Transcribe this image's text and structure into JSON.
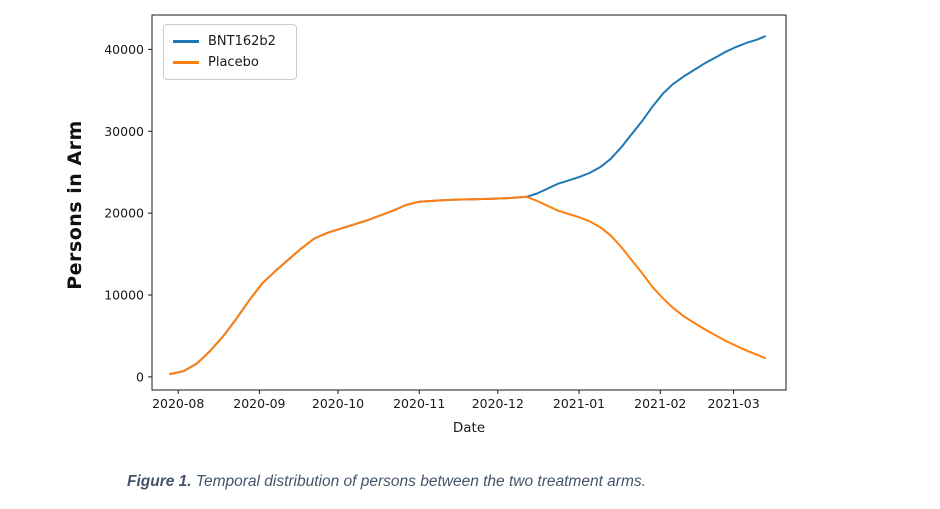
{
  "figure": {
    "caption_prefix": "Figure 1.",
    "caption_text": " Temporal distribution of persons between the two treatment arms.",
    "caption_color": "#44546A"
  },
  "chart_data": {
    "type": "line",
    "title": "",
    "xlabel": "Date",
    "ylabel": "Persons in Arm",
    "grid": false,
    "legend_position": "upper left",
    "axis_color": "#1a1a1a",
    "x_tick_labels": [
      "2020-08",
      "2020-09",
      "2020-10",
      "2020-11",
      "2020-12",
      "2021-01",
      "2021-02",
      "2021-03"
    ],
    "y_ticks": [
      0,
      10000,
      20000,
      30000,
      40000
    ],
    "xlim": [
      "2020-07-22",
      "2021-03-21"
    ],
    "ylim": [
      -1600,
      44200
    ],
    "series": [
      {
        "name": "BNT162b2",
        "color": "#1f77b4",
        "x": [
          "2020-07-29",
          "2020-08-03",
          "2020-08-08",
          "2020-08-13",
          "2020-08-18",
          "2020-08-23",
          "2020-08-28",
          "2020-09-02",
          "2020-09-07",
          "2020-09-12",
          "2020-09-17",
          "2020-09-22",
          "2020-09-27",
          "2020-10-02",
          "2020-10-07",
          "2020-10-12",
          "2020-10-17",
          "2020-10-22",
          "2020-10-27",
          "2020-11-01",
          "2020-11-08",
          "2020-11-15",
          "2020-11-22",
          "2020-11-29",
          "2020-12-06",
          "2020-12-12",
          "2020-12-16",
          "2020-12-20",
          "2020-12-24",
          "2020-12-28",
          "2021-01-01",
          "2021-01-05",
          "2021-01-09",
          "2021-01-13",
          "2021-01-17",
          "2021-01-21",
          "2021-01-25",
          "2021-01-29",
          "2021-02-02",
          "2021-02-06",
          "2021-02-10",
          "2021-02-14",
          "2021-02-18",
          "2021-02-22",
          "2021-02-26",
          "2021-03-02",
          "2021-03-06",
          "2021-03-10",
          "2021-03-13"
        ],
        "y": [
          360,
          700,
          1600,
          3100,
          4900,
          7000,
          9300,
          11400,
          12900,
          14300,
          15700,
          16900,
          17600,
          18100,
          18600,
          19100,
          19700,
          20300,
          21000,
          21400,
          21550,
          21650,
          21700,
          21750,
          21850,
          22000,
          22400,
          23000,
          23600,
          24000,
          24400,
          24900,
          25600,
          26600,
          28000,
          29600,
          31200,
          33000,
          34600,
          35800,
          36700,
          37500,
          38300,
          39000,
          39700,
          40300,
          40800,
          41200,
          41600
        ]
      },
      {
        "name": "Placebo",
        "color": "#ff7f0e",
        "x": [
          "2020-07-29",
          "2020-08-03",
          "2020-08-08",
          "2020-08-13",
          "2020-08-18",
          "2020-08-23",
          "2020-08-28",
          "2020-09-02",
          "2020-09-07",
          "2020-09-12",
          "2020-09-17",
          "2020-09-22",
          "2020-09-27",
          "2020-10-02",
          "2020-10-07",
          "2020-10-12",
          "2020-10-17",
          "2020-10-22",
          "2020-10-27",
          "2020-11-01",
          "2020-11-08",
          "2020-11-15",
          "2020-11-22",
          "2020-11-29",
          "2020-12-06",
          "2020-12-12",
          "2020-12-16",
          "2020-12-20",
          "2020-12-24",
          "2020-12-28",
          "2021-01-01",
          "2021-01-05",
          "2021-01-09",
          "2021-01-13",
          "2021-01-17",
          "2021-01-21",
          "2021-01-25",
          "2021-01-29",
          "2021-02-02",
          "2021-02-06",
          "2021-02-10",
          "2021-02-14",
          "2021-02-18",
          "2021-02-22",
          "2021-02-26",
          "2021-03-02",
          "2021-03-06",
          "2021-03-10",
          "2021-03-13"
        ],
        "y": [
          360,
          700,
          1600,
          3100,
          4900,
          7000,
          9300,
          11400,
          12900,
          14300,
          15700,
          16900,
          17600,
          18100,
          18600,
          19100,
          19700,
          20300,
          21000,
          21400,
          21550,
          21650,
          21700,
          21750,
          21850,
          22000,
          21500,
          20900,
          20300,
          19900,
          19500,
          19000,
          18300,
          17300,
          15900,
          14300,
          12700,
          11000,
          9600,
          8400,
          7400,
          6600,
          5800,
          5100,
          4400,
          3800,
          3200,
          2700,
          2300
        ]
      }
    ]
  }
}
